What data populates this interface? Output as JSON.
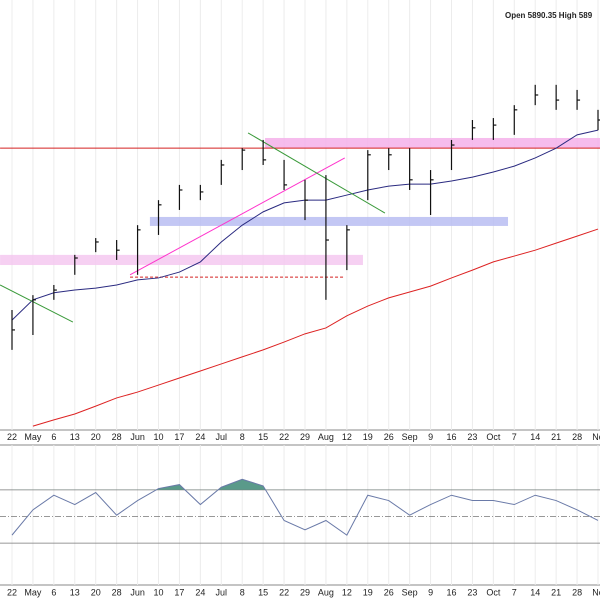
{
  "chart_data": {
    "type": "ohlc",
    "header": "Open 5890.35 High 589",
    "categories": [
      "22",
      "May",
      "6",
      "13",
      "20",
      "28",
      "Jun",
      "10",
      "17",
      "24",
      "Jul",
      "8",
      "15",
      "22",
      "29",
      "Aug",
      "12",
      "19",
      "26",
      "Sep",
      "9",
      "16",
      "23",
      "Oct",
      "7",
      "14",
      "21",
      "28",
      "No"
    ],
    "high": [
      5207,
      5245,
      5271,
      5348,
      5391,
      5386,
      5424,
      5488,
      5527,
      5527,
      5591,
      5621,
      5642,
      5591,
      5540,
      5552,
      5424,
      5616,
      5621,
      5621,
      5565,
      5642,
      5693,
      5698,
      5731,
      5783,
      5783,
      5770,
      5719
    ],
    "low": [
      5105,
      5143,
      5233,
      5297,
      5355,
      5335,
      5297,
      5399,
      5463,
      5488,
      5527,
      5565,
      5578,
      5514,
      5437,
      5233,
      5309,
      5488,
      5565,
      5514,
      5450,
      5565,
      5642,
      5642,
      5655,
      5731,
      5719,
      5719,
      5667
    ],
    "close": [
      5156,
      5233,
      5258,
      5340,
      5381,
      5360,
      5412,
      5476,
      5514,
      5509,
      5578,
      5616,
      5591,
      5527,
      5488,
      5386,
      5412,
      5604,
      5604,
      5540,
      5540,
      5629,
      5673,
      5680,
      5719,
      5757,
      5744,
      5744,
      5693
    ],
    "bar_color": "#111111",
    "ylim": [
      4900,
      6000
    ],
    "moving_averages": [
      {
        "color": "#2a2a80",
        "values": [
          5181,
          5233,
          5251,
          5258,
          5263,
          5271,
          5284,
          5289,
          5304,
          5330,
          5381,
          5424,
          5458,
          5481,
          5488,
          5488,
          5501,
          5514,
          5524,
          5529,
          5529,
          5537,
          5547,
          5560,
          5575,
          5596,
          5621,
          5655,
          5667
        ]
      },
      {
        "color": "#dd2222",
        "values": [
          null,
          4910,
          4926,
          4941,
          4961,
          4982,
          4997,
          5015,
          5033,
          5051,
          5069,
          5087,
          5105,
          5125,
          5146,
          5161,
          5192,
          5217,
          5238,
          5253,
          5268,
          5289,
          5309,
          5330,
          5345,
          5360,
          5378,
          5396,
          5414
        ]
      }
    ],
    "zones": [
      {
        "color": "#f5b0ea",
        "ylim": [
          5621,
          5647
        ],
        "xrange": [
          12.09,
          28.1
        ]
      },
      {
        "color": "#f5c8f0",
        "ylim": [
          5322,
          5348
        ],
        "xrange": [
          -0.57,
          16.77
        ]
      },
      {
        "color": "#b8bdf2",
        "ylim": [
          5422,
          5445
        ],
        "xrange": [
          6.59,
          23.7
        ]
      }
    ],
    "hlines": [
      {
        "color": "#d42020",
        "value": 5621,
        "xrange": [
          -0.57,
          28.1
        ],
        "dashed": false
      },
      {
        "color": "#d42020",
        "value": 5291,
        "xrange": [
          5.64,
          15.91
        ],
        "dashed": true
      }
    ],
    "trendlines": [
      {
        "color": "#ff33cc",
        "points": [
          [
            5.64,
            5297
          ],
          [
            15.9,
            5596
          ]
        ]
      },
      {
        "color": "#3a9a3a",
        "points": [
          [
            11.28,
            5660
          ],
          [
            17.82,
            5455
          ]
        ]
      },
      {
        "color": "#3a9a3a",
        "points": [
          [
            -0.57,
            5271
          ],
          [
            2.91,
            5176
          ]
        ]
      }
    ],
    "rsi": {
      "values": [
        36,
        55,
        66,
        59,
        68,
        51,
        62,
        71,
        74,
        59,
        72,
        78,
        73,
        47,
        40,
        47,
        36,
        66,
        62,
        51,
        59,
        66,
        62,
        62,
        59,
        66,
        62,
        55,
        47
      ],
      "ylim": [
        0,
        100
      ],
      "levels": [
        30,
        50,
        70
      ],
      "color": "#6a7aa8",
      "fill": "#5a9a8a"
    }
  }
}
